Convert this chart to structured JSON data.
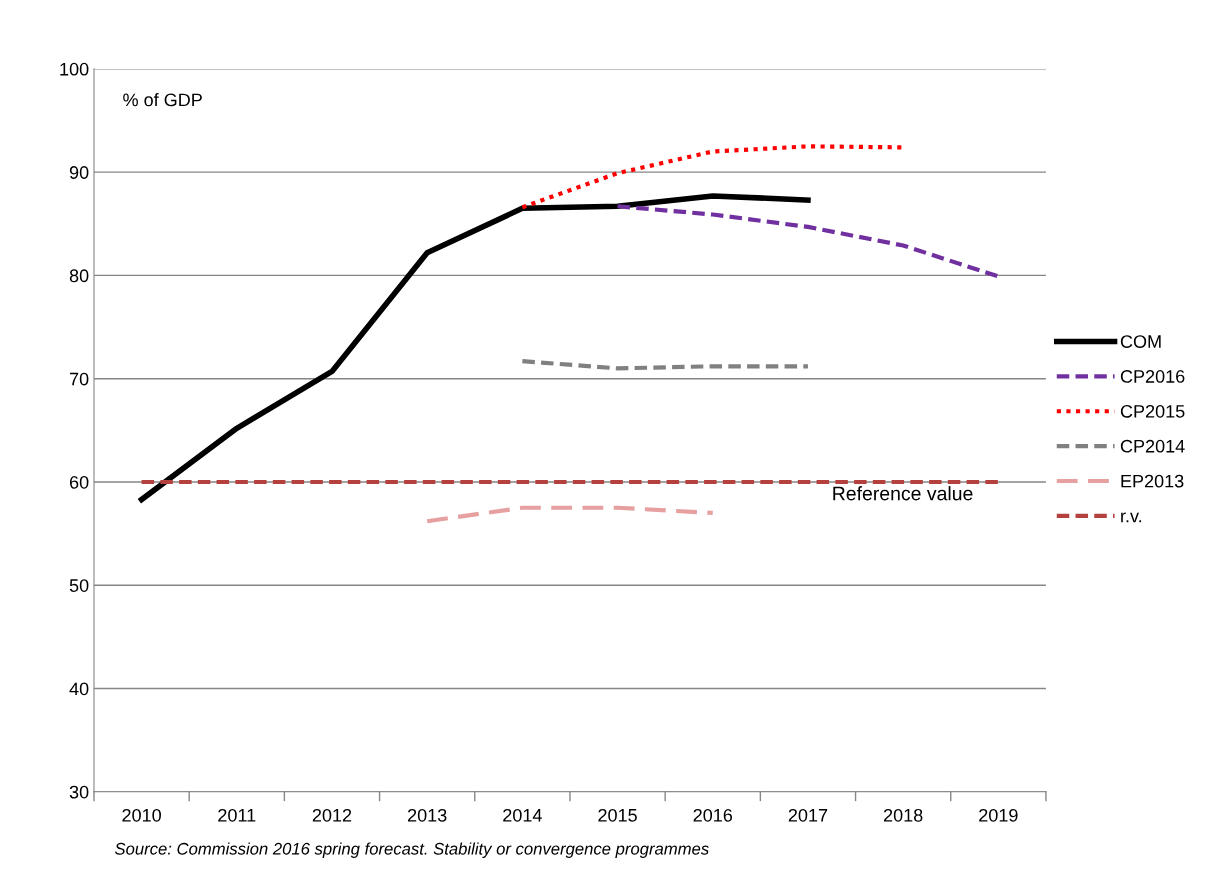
{
  "chart_data": {
    "type": "line",
    "ylabel": "% of GDP",
    "categories": [
      "2010",
      "2011",
      "2012",
      "2013",
      "2014",
      "2015",
      "2016",
      "2017",
      "2018",
      "2019"
    ],
    "ylim": [
      30,
      100
    ],
    "yticks": [
      30,
      40,
      50,
      60,
      70,
      80,
      90,
      100
    ],
    "grid": "y",
    "legend": "right",
    "marker": "none",
    "series": [
      {
        "name": "COM",
        "color": "#000000",
        "line_style": "solid",
        "values": [
          58.3,
          65.2,
          70.7,
          82.2,
          86.5,
          86.7,
          87.7,
          87.3,
          null,
          null
        ]
      },
      {
        "name": "CP2016",
        "color": "#7030a0",
        "line_style": "dashed",
        "values": [
          null,
          null,
          null,
          null,
          null,
          86.7,
          85.9,
          84.7,
          82.9,
          79.9
        ]
      },
      {
        "name": "CP2015",
        "color": "#ff0000",
        "line_style": "dotted",
        "values": [
          null,
          null,
          null,
          null,
          86.6,
          89.9,
          92.0,
          92.5,
          92.4,
          null
        ]
      },
      {
        "name": "CP2014",
        "color": "#808080",
        "line_style": "dashed",
        "values": [
          null,
          null,
          null,
          null,
          71.7,
          71.0,
          71.2,
          71.2,
          null,
          null
        ]
      },
      {
        "name": "EP2013",
        "color": "#e6a0a0",
        "line_style": "dashed",
        "values": [
          null,
          null,
          null,
          56.2,
          57.5,
          57.5,
          57.0,
          null,
          null,
          null
        ]
      },
      {
        "name": "r.v.",
        "color": "#b5413e",
        "line_style": "dashed",
        "values": [
          60,
          60,
          60,
          60,
          60,
          60,
          60,
          60,
          60,
          60
        ]
      }
    ],
    "annotations": [
      "Reference value",
      "Source: Commission 2016 spring forecast. Stability or convergence programmes"
    ]
  }
}
